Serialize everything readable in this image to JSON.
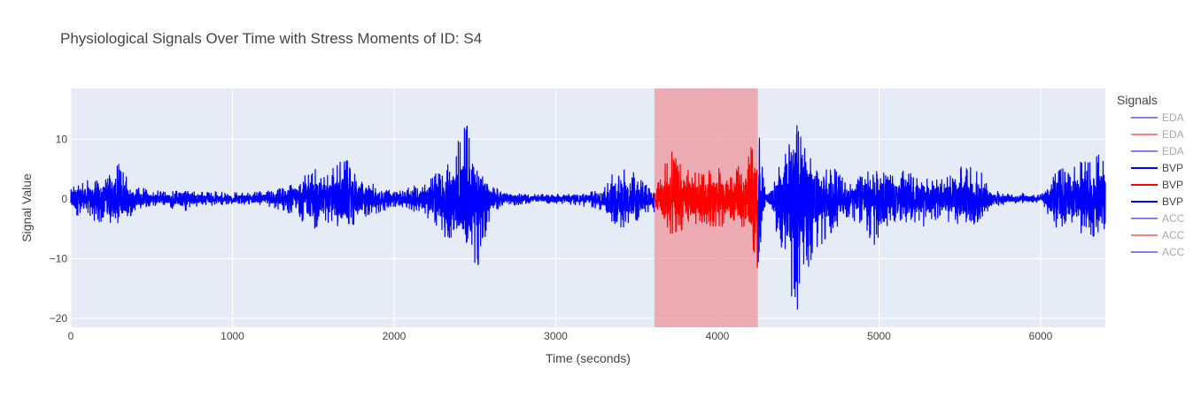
{
  "chart_data": {
    "type": "line",
    "title": "Physiological Signals Over Time with Stress Moments of ID: S4",
    "xlabel": "Time (seconds)",
    "ylabel": "Signal Value",
    "xlim": [
      0,
      6400
    ],
    "ylim": [
      -21.5,
      18.5
    ],
    "x_ticks": [
      0,
      1000,
      2000,
      3000,
      4000,
      5000,
      6000
    ],
    "y_ticks": [
      -20,
      -10,
      0,
      10
    ],
    "grid": true,
    "plot_background": "#e5ecf6",
    "legend": {
      "title": "Signals",
      "placement": "right",
      "entries": [
        {
          "name": "EDA",
          "color": "#0000ff",
          "faded": true
        },
        {
          "name": "EDA",
          "color": "#ff0000",
          "faded": true
        },
        {
          "name": "EDA",
          "color": "#0000ff",
          "faded": true
        },
        {
          "name": "BVP",
          "color": "#0000ff",
          "faded": false
        },
        {
          "name": "BVP",
          "color": "#ff0000",
          "faded": false
        },
        {
          "name": "BVP",
          "color": "#0000ff",
          "faded": false
        },
        {
          "name": "ACC",
          "color": "#0000ff",
          "faded": true
        },
        {
          "name": "ACC",
          "color": "#ff0000",
          "faded": true
        },
        {
          "name": "ACC",
          "color": "#0000ff",
          "faded": true
        }
      ]
    },
    "stress_region": {
      "x_start": 3610,
      "x_end": 4250,
      "color": "#ef8e95"
    },
    "envelope": {
      "x": [
        0,
        100,
        200,
        280,
        400,
        500,
        600,
        700,
        800,
        900,
        1000,
        1100,
        1200,
        1300,
        1400,
        1480,
        1600,
        1700,
        1780,
        1900,
        2000,
        2100,
        2200,
        2280,
        2380,
        2430,
        2500,
        2600,
        2700,
        2800,
        2900,
        3000,
        3100,
        3200,
        3300,
        3400,
        3500,
        3600,
        3700,
        3800,
        3900,
        4000,
        4100,
        4200,
        4250,
        4300,
        4400,
        4450,
        4500,
        4600,
        4700,
        4800,
        4900,
        5000,
        5100,
        5200,
        5300,
        5400,
        5500,
        5600,
        5700,
        5800,
        5900,
        6000,
        6100,
        6200,
        6300,
        6400
      ],
      "upper": [
        2.5,
        3.2,
        3.5,
        6.5,
        2.2,
        1.5,
        1.3,
        1.5,
        1.2,
        1.3,
        1.2,
        1.1,
        1.4,
        1.8,
        2.8,
        5.5,
        4.8,
        7.5,
        3.8,
        2.2,
        1.5,
        2.0,
        3.0,
        5.5,
        6.5,
        16.5,
        6.0,
        2.5,
        1.0,
        1.0,
        0.8,
        0.9,
        1.0,
        1.2,
        2.0,
        6.5,
        5.0,
        1.5,
        8.5,
        5.5,
        4.5,
        5.5,
        4.2,
        8.5,
        14.3,
        0.5,
        6.5,
        10.5,
        13.2,
        5.5,
        6.0,
        3.0,
        4.2,
        6.5,
        5.2,
        4.5,
        4.0,
        3.2,
        5.5,
        6.2,
        2.0,
        1.0,
        1.0,
        0.8,
        5.0,
        5.5,
        7.5,
        7.8
      ],
      "lower": [
        -3.5,
        -3.0,
        -4.5,
        -6.0,
        -2.0,
        -1.2,
        -1.2,
        -3.0,
        -1.0,
        -1.2,
        -1.0,
        -1.0,
        -1.2,
        -2.0,
        -3.5,
        -5.5,
        -4.0,
        -6.5,
        -4.0,
        -2.5,
        -1.5,
        -2.0,
        -3.0,
        -6.5,
        -7.2,
        -5.5,
        -13.2,
        -2.5,
        -1.2,
        -1.0,
        -0.8,
        -0.8,
        -1.0,
        -1.5,
        -2.5,
        -5.5,
        -4.0,
        -2.0,
        -6.0,
        -5.5,
        -4.5,
        -5.0,
        -4.0,
        -5.5,
        -12.5,
        -0.5,
        -8.5,
        -18.5,
        -19.5,
        -9.0,
        -6.0,
        -3.2,
        -4.5,
        -9.8,
        -4.0,
        -4.0,
        -5.0,
        -3.5,
        -5.0,
        -4.5,
        -1.5,
        -0.8,
        -0.8,
        -0.6,
        -5.0,
        -5.5,
        -6.2,
        -7.8
      ]
    }
  }
}
